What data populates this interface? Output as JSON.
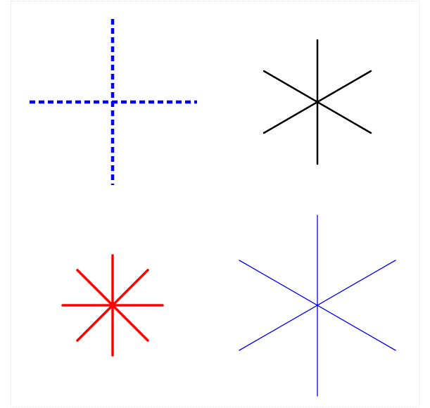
{
  "diagram": {
    "figures": [
      {
        "id": "dashed-cross",
        "name": "blue-dashed-cross",
        "color": "#0000ff",
        "style": "dashed",
        "spokes": 4,
        "line_weight": "heavy"
      },
      {
        "id": "black-asterisk",
        "name": "black-six-spoke-asterisk",
        "color": "#000000",
        "style": "solid",
        "spokes": 6,
        "line_weight": "medium"
      },
      {
        "id": "red-star",
        "name": "red-eight-spoke-star",
        "color": "#ff0000",
        "style": "solid",
        "spokes": 8,
        "line_weight": "heavy"
      },
      {
        "id": "blue-asterisk",
        "name": "blue-six-spoke-asterisk",
        "color": "#0000ff",
        "style": "solid",
        "spokes": 6,
        "line_weight": "thin"
      }
    ]
  }
}
